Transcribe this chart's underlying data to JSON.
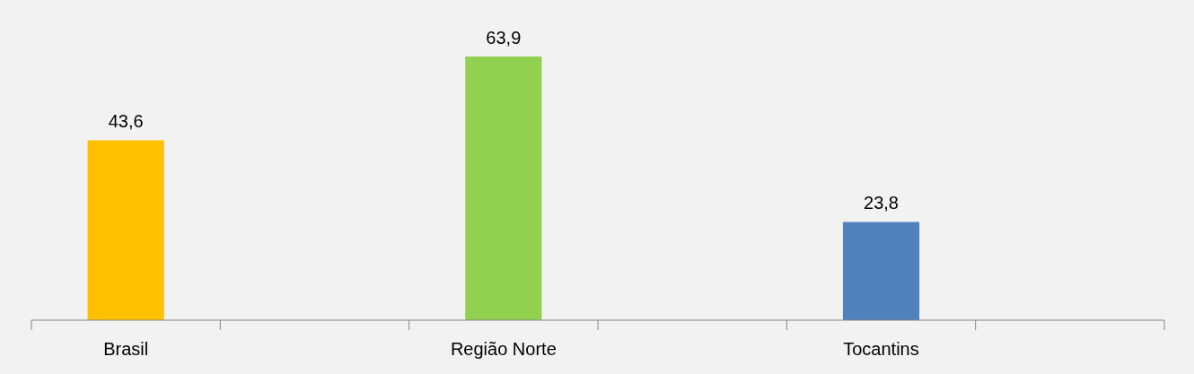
{
  "chart_data": {
    "type": "bar",
    "categories": [
      "Brasil",
      null,
      "Região Norte",
      null,
      "Tocantins",
      null
    ],
    "values": [
      43.6,
      null,
      63.9,
      null,
      23.8,
      null
    ],
    "value_labels": [
      "43,6",
      null,
      "63,9",
      null,
      "23,8",
      null
    ],
    "colors": [
      "#ffc000",
      null,
      "#92d050",
      null,
      "#4f81bd",
      null
    ]
  }
}
